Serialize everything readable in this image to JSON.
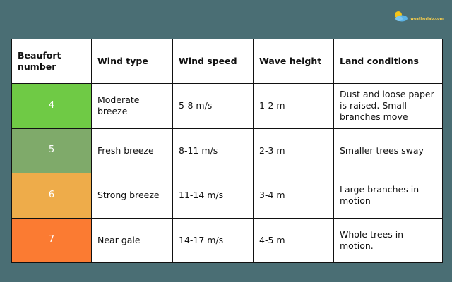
{
  "logo": {
    "text": "weatherlab.com",
    "icon": "sun-cloud-icon",
    "colors": {
      "sun": "#f5c518",
      "cloud": "#5bb3e6"
    }
  },
  "table": {
    "headers": [
      "Beaufort number",
      "Wind type",
      "Wind speed",
      "Wave height",
      "Land conditions"
    ],
    "rows": [
      {
        "number": "4",
        "color": "#6fca45",
        "wind_type": "Moderate breeze",
        "wind_speed": "5-8 m/s",
        "wave_height": "1-2 m",
        "land_conditions": "Dust and loose paper is raised. Small branches move"
      },
      {
        "number": "5",
        "color": "#7faa6a",
        "wind_type": "Fresh breeze",
        "wind_speed": "8-11 m/s",
        "wave_height": "2-3 m",
        "land_conditions": "Smaller trees sway"
      },
      {
        "number": "6",
        "color": "#eeac4a",
        "wind_type": "Strong breeze",
        "wind_speed": "11-14 m/s",
        "wave_height": "3-4 m",
        "land_conditions": "Large branches in motion"
      },
      {
        "number": "7",
        "color": "#fb7b32",
        "wind_type": "Near gale",
        "wind_speed": "14-17 m/s",
        "wave_height": "4-5 m",
        "land_conditions": "Whole trees in motion."
      }
    ]
  }
}
